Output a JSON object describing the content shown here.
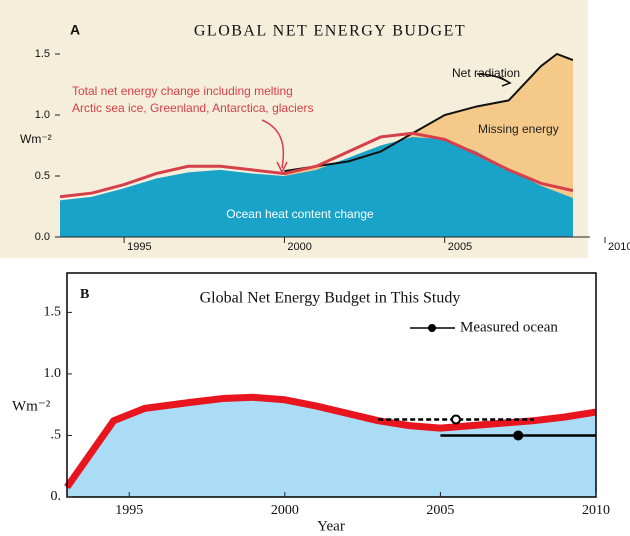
{
  "chart_data": [
    {
      "type": "area",
      "panel_label": "A",
      "title": "GLOBAL NET ENERGY BUDGET",
      "ylabel": "Wm⁻²",
      "xlim": [
        1993,
        2010
      ],
      "ylim": [
        0,
        1.75
      ],
      "xticks": [
        1995,
        2000,
        2005,
        2010
      ],
      "yticks": [
        {
          "value": 0,
          "label": "0.0"
        },
        0.5,
        {
          "value": 1,
          "label": "1.0"
        },
        1.5
      ],
      "background": "#f5eedb",
      "series": [
        {
          "name": "Net radiation",
          "kind": "line",
          "color": "#111111",
          "fill": "#f5c98a",
          "x": [
            2000,
            2001,
            2002,
            2003,
            2004,
            2005,
            2006,
            2007,
            2008,
            2008.5,
            2009
          ],
          "values": [
            0.54,
            0.58,
            0.62,
            0.7,
            0.85,
            1.0,
            1.07,
            1.12,
            1.4,
            1.5,
            1.45
          ]
        },
        {
          "name": "Ocean heat content change",
          "kind": "area",
          "color": "#19a3c9",
          "x": [
            1993,
            1994,
            1995,
            1996,
            1997,
            1998,
            1999,
            2000,
            2001,
            2002,
            2003,
            2004,
            2005,
            2006,
            2007,
            2008,
            2009
          ],
          "values": [
            0.3,
            0.33,
            0.4,
            0.48,
            0.53,
            0.55,
            0.52,
            0.5,
            0.55,
            0.65,
            0.75,
            0.82,
            0.8,
            0.7,
            0.55,
            0.42,
            0.32
          ]
        },
        {
          "name": [
            "Total net energy change including melting",
            "Arctic sea ice, Greenland, Antarctica, glaciers"
          ],
          "kind": "line",
          "color": "#d6404a",
          "x": [
            1993,
            1994,
            1995,
            1996,
            1997,
            1998,
            1999,
            2000,
            2001,
            2002,
            2003,
            2004,
            2005,
            2006,
            2007,
            2008,
            2009
          ],
          "values": [
            0.33,
            0.36,
            0.43,
            0.52,
            0.58,
            0.58,
            0.55,
            0.52,
            0.58,
            0.7,
            0.82,
            0.85,
            0.8,
            0.68,
            0.55,
            0.44,
            0.38
          ]
        }
      ],
      "annotations": [
        "Missing energy"
      ]
    },
    {
      "type": "area",
      "panel_label": "B",
      "title": "Global Net Energy Budget in This Study",
      "xlabel": "Year",
      "ylabel": "Wm⁻²",
      "xlim": [
        1993,
        2010
      ],
      "ylim": [
        0,
        1.82
      ],
      "xticks": [
        1995,
        2000,
        2005,
        2010
      ],
      "yticks": [
        {
          "value": 0,
          "label": "0."
        },
        {
          "value": 0.5,
          "label": ".5"
        },
        {
          "value": 1,
          "label": "1.0"
        },
        1.5
      ],
      "series": [
        {
          "kind": "band",
          "color": "#e8141e",
          "fill": "#aadcf6",
          "x": [
            1993,
            1994.5,
            1995.5,
            1997,
            1998,
            1999,
            2000,
            2001,
            2002,
            2003,
            2004,
            2005,
            2006,
            2007,
            2008,
            2009,
            2010
          ],
          "values": [
            0.08,
            0.62,
            0.72,
            0.77,
            0.8,
            0.81,
            0.79,
            0.74,
            0.68,
            0.62,
            0.58,
            0.56,
            0.58,
            0.6,
            0.62,
            0.65,
            0.69
          ]
        }
      ],
      "measured": {
        "name": "Measured ocean",
        "color": "#000000",
        "x": [
          2005.5,
          2007.5
        ],
        "values": [
          0.63,
          0.5
        ],
        "xerr_low": [
          2003,
          2005
        ],
        "xerr_high": [
          2008,
          2010
        ],
        "line_styles": [
          "dashed",
          "solid"
        ],
        "filled": [
          false,
          true
        ]
      }
    }
  ]
}
